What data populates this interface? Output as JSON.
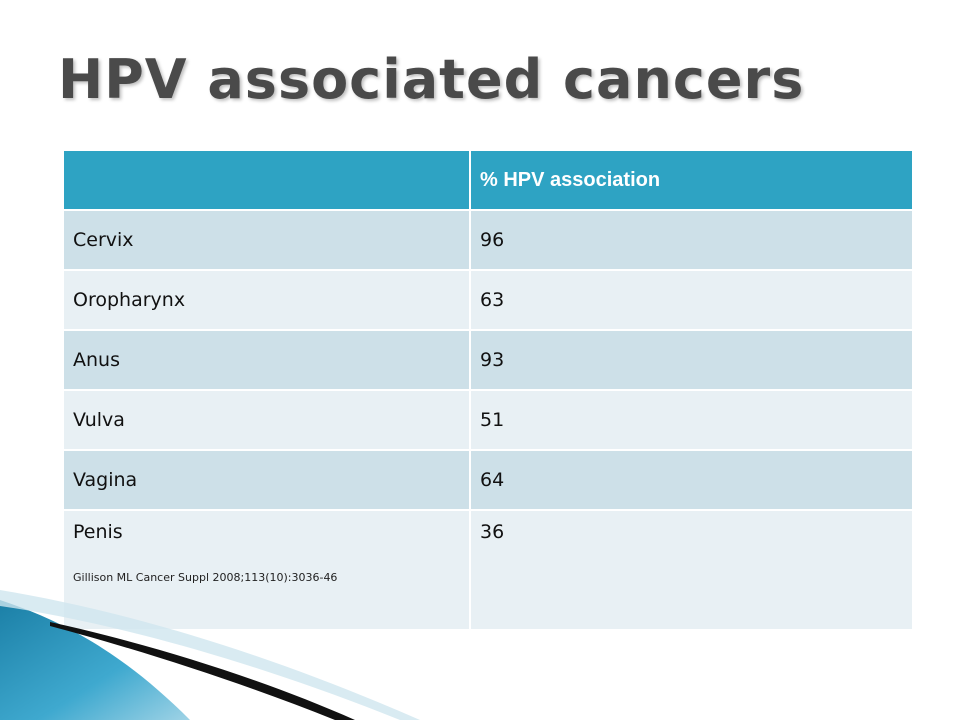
{
  "slide": {
    "title": "HPV associated cancers"
  },
  "table": {
    "header": [
      "",
      "% HPV association"
    ],
    "rows": [
      {
        "site": "Cervix",
        "value": "96"
      },
      {
        "site": "Oropharynx",
        "value": "63"
      },
      {
        "site": "Anus",
        "value": "93"
      },
      {
        "site": "Vulva",
        "value": "51"
      },
      {
        "site": "Vagina",
        "value": "64"
      },
      {
        "site": "Penis",
        "value": "36"
      }
    ],
    "citation": "Gillison ML Cancer Suppl 2008;113(10):3036-46"
  },
  "colors": {
    "header_bg": "#2ea3c3",
    "row_dark": "#cde0e8",
    "row_light": "#e8f0f4",
    "title": "#4a4a4a"
  }
}
